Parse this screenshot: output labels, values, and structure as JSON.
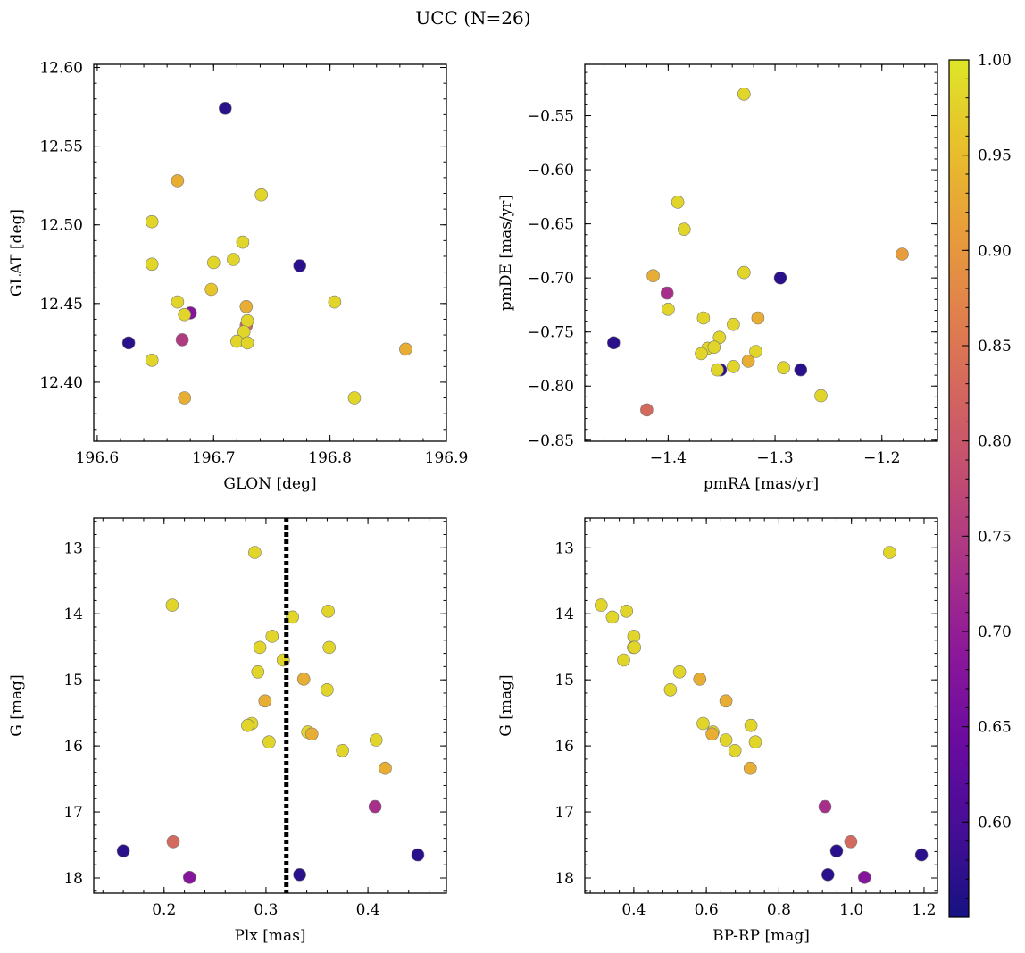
{
  "figure": {
    "title": "UCC (N=26)"
  },
  "colorbar": {
    "colormap": "plasma",
    "range": [
      0.55,
      1.0
    ],
    "ticks": [
      "0.60",
      "0.65",
      "0.70",
      "0.75",
      "0.80",
      "0.85",
      "0.90",
      "0.95",
      "1.00"
    ]
  },
  "chart_data": [
    {
      "id": "sky",
      "type": "scatter",
      "xlabel": "GLON [deg]",
      "ylabel": "GLAT [deg]",
      "xlim": [
        196.597,
        196.9
      ],
      "ylim": [
        12.3625,
        12.602
      ],
      "xticks": [
        "196.6",
        "196.7",
        "196.8",
        "196.9"
      ],
      "yticks": [
        "12.40",
        "12.45",
        "12.50",
        "12.55",
        "12.60"
      ],
      "grid": false,
      "points": [
        {
          "x": 196.71,
          "y": 12.574,
          "c": 0.57
        },
        {
          "x": 196.669,
          "y": 12.528,
          "c": 0.93
        },
        {
          "x": 196.741,
          "y": 12.519,
          "c": 0.98
        },
        {
          "x": 196.647,
          "y": 12.502,
          "c": 0.98
        },
        {
          "x": 196.725,
          "y": 12.489,
          "c": 0.98
        },
        {
          "x": 196.717,
          "y": 12.478,
          "c": 0.98
        },
        {
          "x": 196.7,
          "y": 12.476,
          "c": 0.98
        },
        {
          "x": 196.647,
          "y": 12.475,
          "c": 0.98
        },
        {
          "x": 196.774,
          "y": 12.474,
          "c": 0.57
        },
        {
          "x": 196.698,
          "y": 12.459,
          "c": 0.96
        },
        {
          "x": 196.669,
          "y": 12.451,
          "c": 0.98
        },
        {
          "x": 196.804,
          "y": 12.451,
          "c": 0.98
        },
        {
          "x": 196.728,
          "y": 12.448,
          "c": 0.93
        },
        {
          "x": 196.68,
          "y": 12.444,
          "c": 0.68
        },
        {
          "x": 196.675,
          "y": 12.443,
          "c": 0.98
        },
        {
          "x": 196.728,
          "y": 12.436,
          "c": 0.82
        },
        {
          "x": 196.729,
          "y": 12.439,
          "c": 0.98
        },
        {
          "x": 196.726,
          "y": 12.432,
          "c": 0.98
        },
        {
          "x": 196.673,
          "y": 12.427,
          "c": 0.75
        },
        {
          "x": 196.72,
          "y": 12.426,
          "c": 0.98
        },
        {
          "x": 196.729,
          "y": 12.425,
          "c": 0.98
        },
        {
          "x": 196.627,
          "y": 12.425,
          "c": 0.57
        },
        {
          "x": 196.865,
          "y": 12.421,
          "c": 0.93
        },
        {
          "x": 196.647,
          "y": 12.414,
          "c": 0.98
        },
        {
          "x": 196.675,
          "y": 12.39,
          "c": 0.93
        },
        {
          "x": 196.821,
          "y": 12.39,
          "c": 0.98
        }
      ]
    },
    {
      "id": "pm",
      "type": "scatter",
      "xlabel": "pmRA [mas/yr]",
      "ylabel": "pmDE [mas/yr]",
      "xlim": [
        -1.478,
        -1.148
      ],
      "ylim": [
        -0.851,
        -0.5025
      ],
      "xticks": [
        "−1.4",
        "−1.3",
        "−1.2"
      ],
      "yticks": [
        "−0.85",
        "−0.80",
        "−0.75",
        "−0.70",
        "−0.65",
        "−0.60",
        "−0.55"
      ],
      "grid": false,
      "points": [
        {
          "x": -1.329,
          "y": -0.53,
          "c": 0.98
        },
        {
          "x": -1.391,
          "y": -0.63,
          "c": 0.98
        },
        {
          "x": -1.385,
          "y": -0.655,
          "c": 0.98
        },
        {
          "x": -1.329,
          "y": -0.695,
          "c": 0.98
        },
        {
          "x": -1.414,
          "y": -0.698,
          "c": 0.93
        },
        {
          "x": -1.295,
          "y": -0.7,
          "c": 0.57
        },
        {
          "x": -1.181,
          "y": -0.678,
          "c": 0.91
        },
        {
          "x": -1.401,
          "y": -0.714,
          "c": 0.73
        },
        {
          "x": -1.4,
          "y": -0.729,
          "c": 0.98
        },
        {
          "x": -1.367,
          "y": -0.737,
          "c": 0.98
        },
        {
          "x": -1.316,
          "y": -0.737,
          "c": 0.93
        },
        {
          "x": -1.339,
          "y": -0.743,
          "c": 0.98
        },
        {
          "x": -1.451,
          "y": -0.76,
          "c": 0.57
        },
        {
          "x": -1.352,
          "y": -0.755,
          "c": 0.98
        },
        {
          "x": -1.363,
          "y": -0.765,
          "c": 0.98
        },
        {
          "x": -1.357,
          "y": -0.764,
          "c": 0.98
        },
        {
          "x": -1.318,
          "y": -0.768,
          "c": 0.98
        },
        {
          "x": -1.369,
          "y": -0.77,
          "c": 0.98
        },
        {
          "x": -1.325,
          "y": -0.777,
          "c": 0.93
        },
        {
          "x": -1.339,
          "y": -0.782,
          "c": 0.98
        },
        {
          "x": -1.292,
          "y": -0.783,
          "c": 0.98
        },
        {
          "x": -1.351,
          "y": -0.785,
          "c": 0.57
        },
        {
          "x": -1.354,
          "y": -0.785,
          "c": 0.98
        },
        {
          "x": -1.276,
          "y": -0.785,
          "c": 0.57
        },
        {
          "x": -1.257,
          "y": -0.809,
          "c": 0.98
        },
        {
          "x": -1.42,
          "y": -0.822,
          "c": 0.83
        }
      ]
    },
    {
      "id": "cmd-plx",
      "type": "scatter",
      "xlabel": "Plx [mas]",
      "ylabel": "G [mag]",
      "xlim": [
        0.131,
        0.477
      ],
      "ylim": [
        18.23,
        12.55
      ],
      "y_inverted": true,
      "xticks": [
        "0.2",
        "0.3",
        "0.4"
      ],
      "yticks": [
        "13",
        "14",
        "15",
        "16",
        "17",
        "18"
      ],
      "grid": false,
      "vline": {
        "x": 0.32,
        "style": "dotted",
        "color": "#000000"
      },
      "points": [
        {
          "x": 0.289,
          "y": 13.07,
          "c": 0.98
        },
        {
          "x": 0.208,
          "y": 13.87,
          "c": 0.98
        },
        {
          "x": 0.361,
          "y": 13.96,
          "c": 0.98
        },
        {
          "x": 0.326,
          "y": 14.05,
          "c": 0.98
        },
        {
          "x": 0.306,
          "y": 14.34,
          "c": 0.98
        },
        {
          "x": 0.294,
          "y": 14.51,
          "c": 0.98
        },
        {
          "x": 0.362,
          "y": 14.51,
          "c": 0.98
        },
        {
          "x": 0.317,
          "y": 14.7,
          "c": 0.98
        },
        {
          "x": 0.292,
          "y": 14.88,
          "c": 0.98
        },
        {
          "x": 0.337,
          "y": 14.99,
          "c": 0.93
        },
        {
          "x": 0.36,
          "y": 15.15,
          "c": 0.98
        },
        {
          "x": 0.299,
          "y": 15.32,
          "c": 0.93
        },
        {
          "x": 0.286,
          "y": 15.66,
          "c": 0.98
        },
        {
          "x": 0.282,
          "y": 15.69,
          "c": 0.98
        },
        {
          "x": 0.341,
          "y": 15.79,
          "c": 0.98
        },
        {
          "x": 0.345,
          "y": 15.82,
          "c": 0.93
        },
        {
          "x": 0.408,
          "y": 15.91,
          "c": 0.98
        },
        {
          "x": 0.303,
          "y": 15.94,
          "c": 0.98
        },
        {
          "x": 0.375,
          "y": 16.07,
          "c": 0.98
        },
        {
          "x": 0.417,
          "y": 16.34,
          "c": 0.93
        },
        {
          "x": 0.407,
          "y": 16.92,
          "c": 0.73
        },
        {
          "x": 0.209,
          "y": 17.45,
          "c": 0.83
        },
        {
          "x": 0.16,
          "y": 17.59,
          "c": 0.57
        },
        {
          "x": 0.449,
          "y": 17.65,
          "c": 0.57
        },
        {
          "x": 0.333,
          "y": 17.95,
          "c": 0.57
        },
        {
          "x": 0.225,
          "y": 17.99,
          "c": 0.68
        }
      ]
    },
    {
      "id": "cmd-color",
      "type": "scatter",
      "xlabel": "BP-RP [mag]",
      "ylabel": "G [mag]",
      "xlim": [
        0.265,
        1.237
      ],
      "ylim": [
        18.23,
        12.55
      ],
      "y_inverted": true,
      "xticks": [
        "0.4",
        "0.6",
        "0.8",
        "1.0",
        "1.2"
      ],
      "yticks": [
        "13",
        "14",
        "15",
        "16",
        "17",
        "18"
      ],
      "grid": false,
      "points": [
        {
          "x": 1.105,
          "y": 13.07,
          "c": 0.98
        },
        {
          "x": 0.31,
          "y": 13.87,
          "c": 0.98
        },
        {
          "x": 0.38,
          "y": 13.96,
          "c": 0.98
        },
        {
          "x": 0.341,
          "y": 14.05,
          "c": 0.98
        },
        {
          "x": 0.4,
          "y": 14.34,
          "c": 0.98
        },
        {
          "x": 0.399,
          "y": 14.51,
          "c": 0.98
        },
        {
          "x": 0.402,
          "y": 14.51,
          "c": 0.98
        },
        {
          "x": 0.372,
          "y": 14.7,
          "c": 0.98
        },
        {
          "x": 0.526,
          "y": 14.88,
          "c": 0.98
        },
        {
          "x": 0.582,
          "y": 14.99,
          "c": 0.93
        },
        {
          "x": 0.501,
          "y": 15.15,
          "c": 0.98
        },
        {
          "x": 0.654,
          "y": 15.32,
          "c": 0.93
        },
        {
          "x": 0.591,
          "y": 15.66,
          "c": 0.98
        },
        {
          "x": 0.723,
          "y": 15.69,
          "c": 0.98
        },
        {
          "x": 0.618,
          "y": 15.79,
          "c": 0.98
        },
        {
          "x": 0.616,
          "y": 15.82,
          "c": 0.93
        },
        {
          "x": 0.654,
          "y": 15.91,
          "c": 0.98
        },
        {
          "x": 0.735,
          "y": 15.94,
          "c": 0.98
        },
        {
          "x": 0.679,
          "y": 16.07,
          "c": 0.98
        },
        {
          "x": 0.721,
          "y": 16.34,
          "c": 0.93
        },
        {
          "x": 0.927,
          "y": 16.92,
          "c": 0.73
        },
        {
          "x": 0.998,
          "y": 17.45,
          "c": 0.83
        },
        {
          "x": 0.959,
          "y": 17.59,
          "c": 0.57
        },
        {
          "x": 1.193,
          "y": 17.65,
          "c": 0.57
        },
        {
          "x": 0.935,
          "y": 17.95,
          "c": 0.57
        },
        {
          "x": 1.036,
          "y": 17.99,
          "c": 0.68
        }
      ]
    }
  ]
}
